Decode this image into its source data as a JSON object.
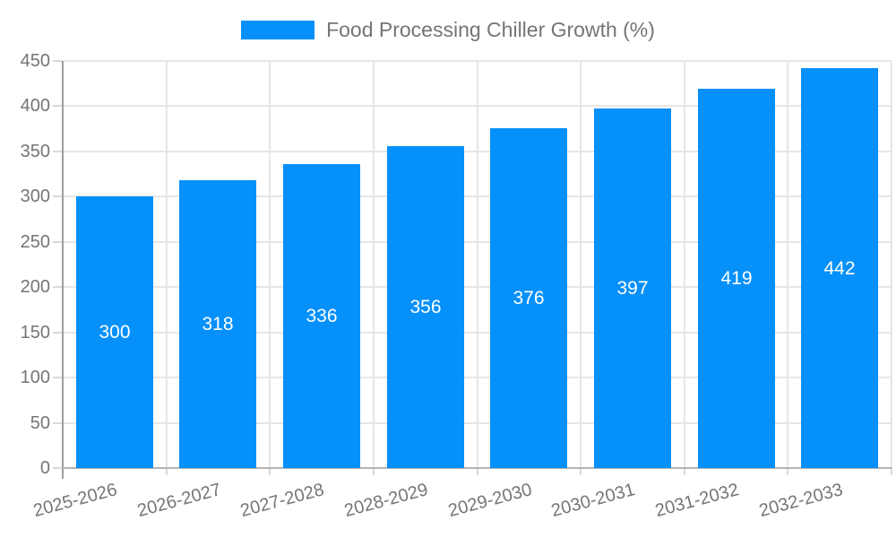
{
  "chart_data": {
    "type": "bar",
    "title": "Food Processing Chiller Growth (%)",
    "categories": [
      "2025-2026",
      "2026-2027",
      "2027-2028",
      "2028-2029",
      "2029-2030",
      "2030-2031",
      "2031-2032",
      "2032-2033"
    ],
    "values": [
      300,
      318,
      336,
      356,
      376,
      397,
      419,
      442
    ],
    "xlabel": "",
    "ylabel": "",
    "ylim": [
      0,
      450
    ],
    "yticks": [
      0,
      50,
      100,
      150,
      200,
      250,
      300,
      350,
      400,
      450
    ],
    "grid": true,
    "legend_position": "top",
    "x_label_rotation_deg": -15,
    "bar_labels_shown_inside": true
  },
  "colors": {
    "bar": "#0690FA",
    "bar_value_text": "#ffffff",
    "axis_text": "#757575",
    "legend_text": "#757575",
    "gridline": "#e6e6e6",
    "tick": "#d9d9d9",
    "y_axis_line": "#9e9e9e",
    "x_baseline": "#b3b3b3",
    "background": "#ffffff"
  }
}
